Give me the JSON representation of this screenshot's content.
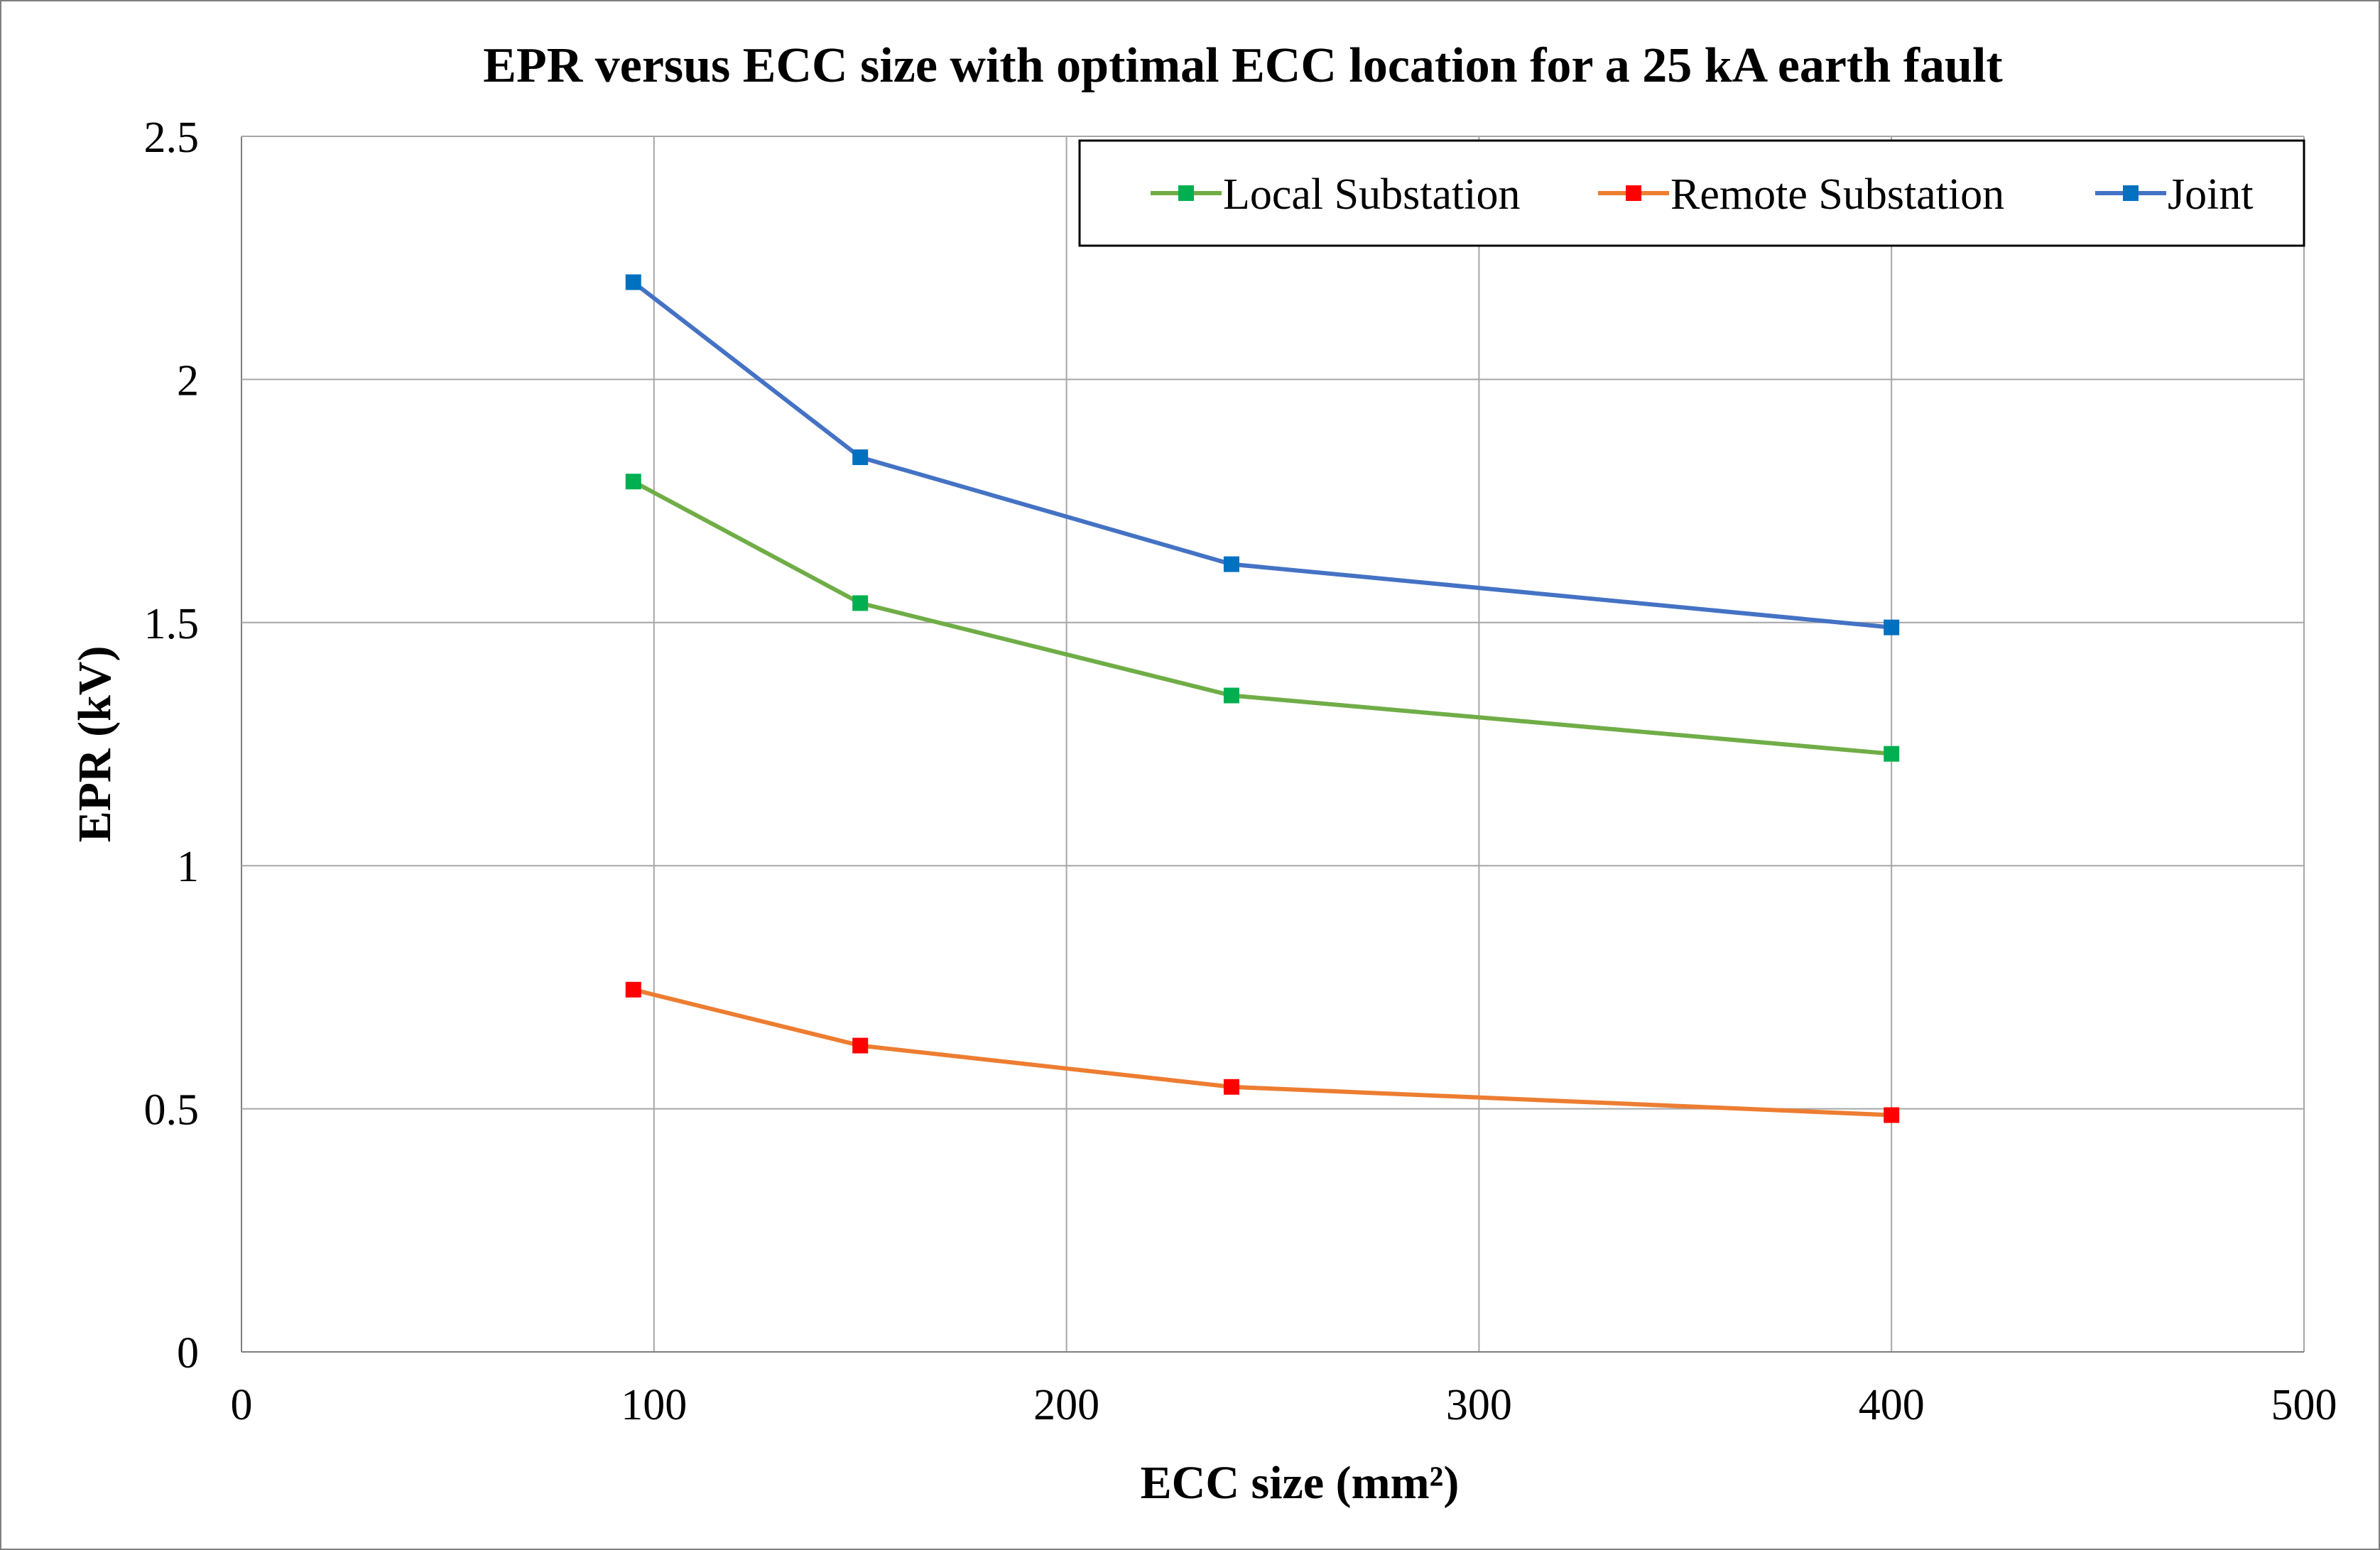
{
  "chart_data": {
    "type": "line",
    "title": "EPR versus ECC size with optimal ECC location for a 25 kA earth fault",
    "xlabel": "ECC size (mm²)",
    "ylabel": "EPR (kV)",
    "xlim": [
      0,
      500
    ],
    "ylim": [
      0,
      2.5
    ],
    "xticks": [
      "0",
      "100",
      "200",
      "300",
      "400",
      "500"
    ],
    "yticks": [
      "0",
      "0.5",
      "1",
      "1.5",
      "2",
      "2.5"
    ],
    "grid": true,
    "legend_placement": "top-right",
    "x": [
      95,
      150,
      240,
      400
    ],
    "series": [
      {
        "name": "Local Substation",
        "values": [
          1.79,
          1.54,
          1.35,
          1.23
        ],
        "line_color": "#70ad47",
        "marker_color": "#00b050"
      },
      {
        "name": "Remote Substation",
        "values": [
          0.745,
          0.63,
          0.545,
          0.487
        ],
        "line_color": "#ed7d31",
        "marker_color": "#ff0000"
      },
      {
        "name": "Joint",
        "values": [
          2.2,
          1.84,
          1.62,
          1.49
        ],
        "line_color": "#4472c4",
        "marker_color": "#0070c0"
      }
    ]
  }
}
